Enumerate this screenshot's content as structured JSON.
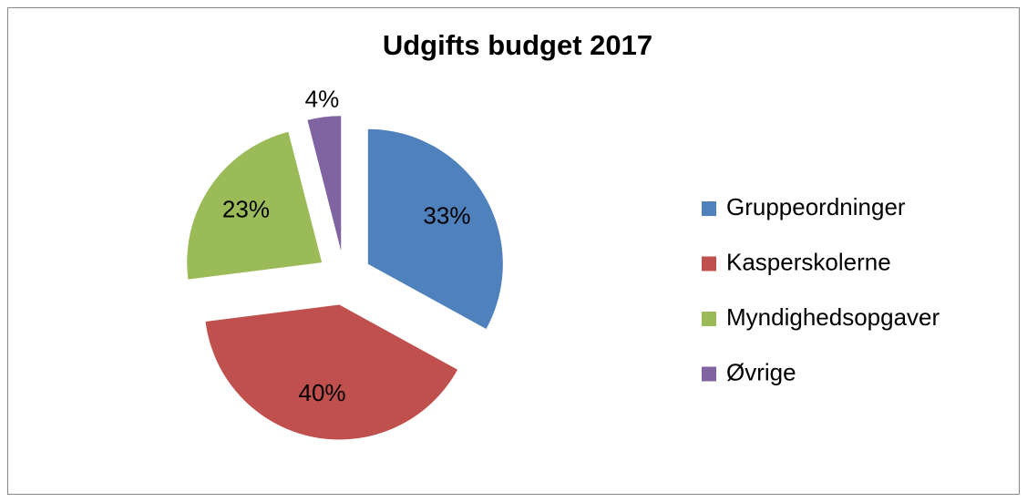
{
  "chart_data": {
    "type": "pie",
    "title": "Udgifts budget 2017",
    "categories": [
      "Gruppeordninger",
      "Kasperskolerne",
      "Myndighedsopgaver",
      "Øvrige"
    ],
    "values": [
      33,
      40,
      23,
      4
    ],
    "value_labels": [
      "33%",
      "40%",
      "23%",
      "4%"
    ],
    "colors": [
      "#4f81bd",
      "#c0504d",
      "#9bbb59",
      "#8064a2"
    ],
    "legend": "right"
  }
}
